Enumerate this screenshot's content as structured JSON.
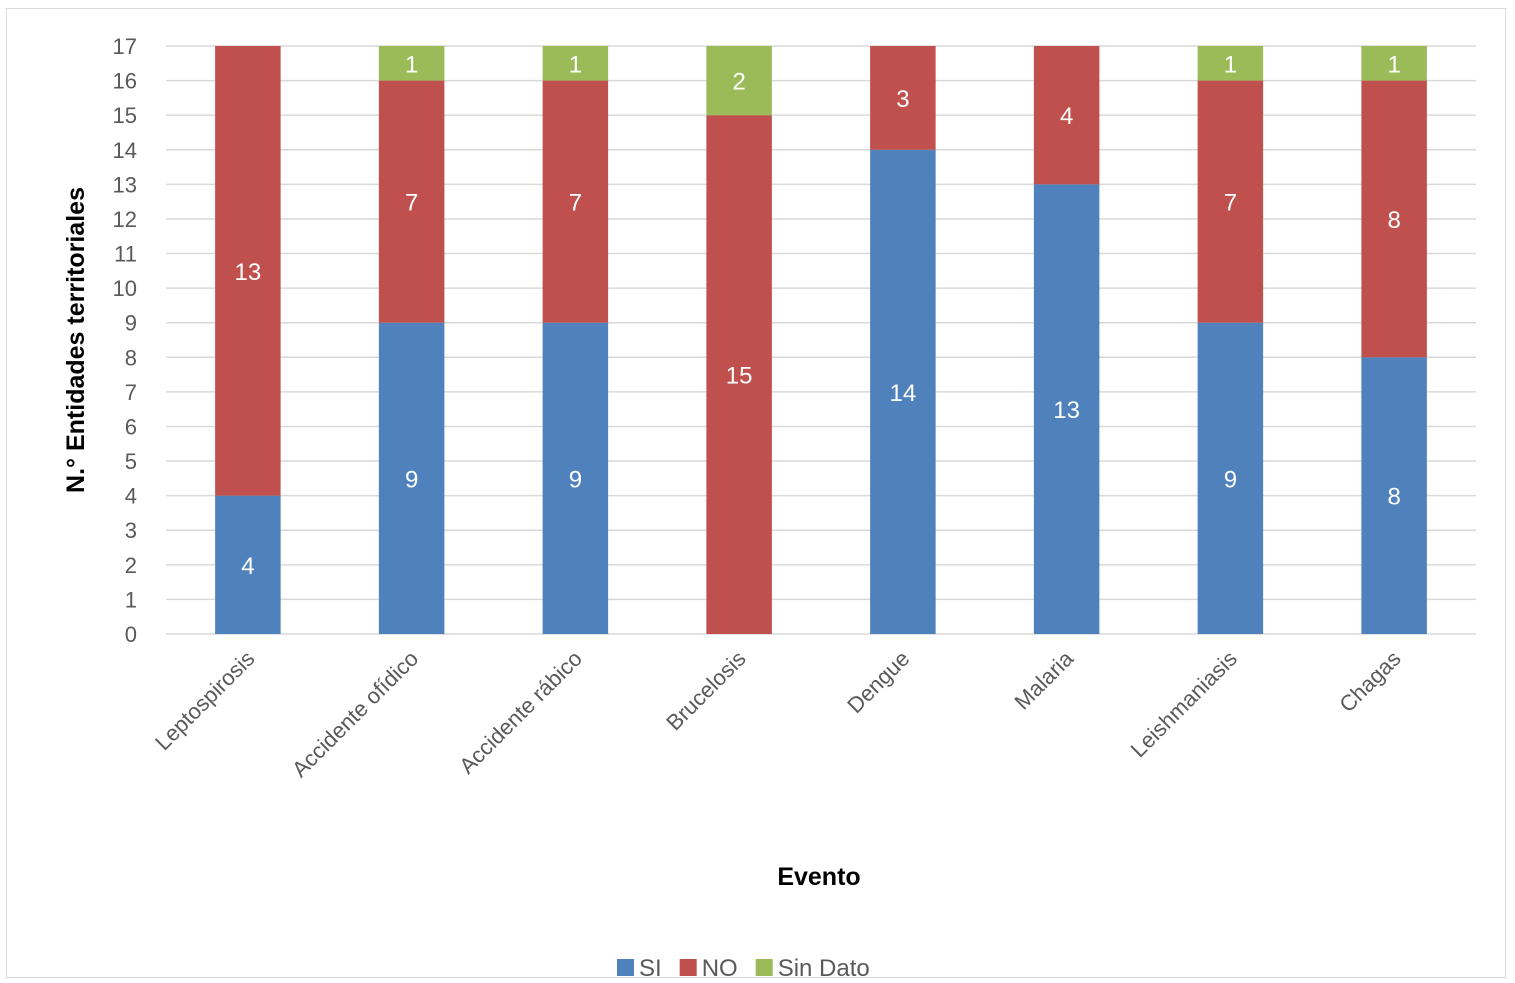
{
  "chart_data": {
    "type": "bar",
    "stacked": true,
    "title": "",
    "xlabel": "Evento",
    "ylabel": "N.° Entidades territoriales",
    "ylim": [
      0,
      17
    ],
    "yticks": [
      0,
      1,
      2,
      3,
      4,
      5,
      6,
      7,
      8,
      9,
      10,
      11,
      12,
      13,
      14,
      15,
      16,
      17
    ],
    "grid": true,
    "legend_position": "bottom",
    "categories": [
      "Leptospirosis",
      "Accidente ofídico",
      "Accidente rábico",
      "Brucelosis",
      "Dengue",
      "Malaria",
      "Leishmaniasis",
      "Chagas"
    ],
    "series": [
      {
        "name": "SI",
        "color": "#4f81bd",
        "values": [
          4,
          9,
          9,
          0,
          14,
          13,
          9,
          8
        ]
      },
      {
        "name": "NO",
        "color": "#c0504d",
        "values": [
          13,
          7,
          7,
          15,
          3,
          4,
          7,
          8
        ]
      },
      {
        "name": "Sin Dato",
        "color": "#9bbb59",
        "values": [
          0,
          1,
          1,
          2,
          0,
          0,
          1,
          1
        ]
      }
    ]
  }
}
